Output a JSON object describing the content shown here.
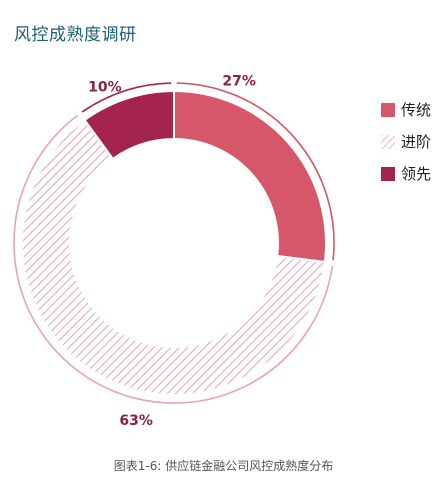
{
  "title": "风控成熟度调研",
  "caption": "图表1-6: 供应链金融公司风控成熟度分布",
  "chart_data": {
    "type": "pie",
    "subtype": "donut",
    "categories": [
      "传统",
      "进阶",
      "领先"
    ],
    "values": [
      27,
      63,
      10
    ],
    "labels": [
      "27%",
      "63%",
      "10%"
    ],
    "unit": "%",
    "colors": [
      "#d6566a",
      "#e8a4b0",
      "#a5234f"
    ],
    "patterns": [
      "solid",
      "hatched",
      "solid"
    ],
    "legend_position": "right"
  }
}
